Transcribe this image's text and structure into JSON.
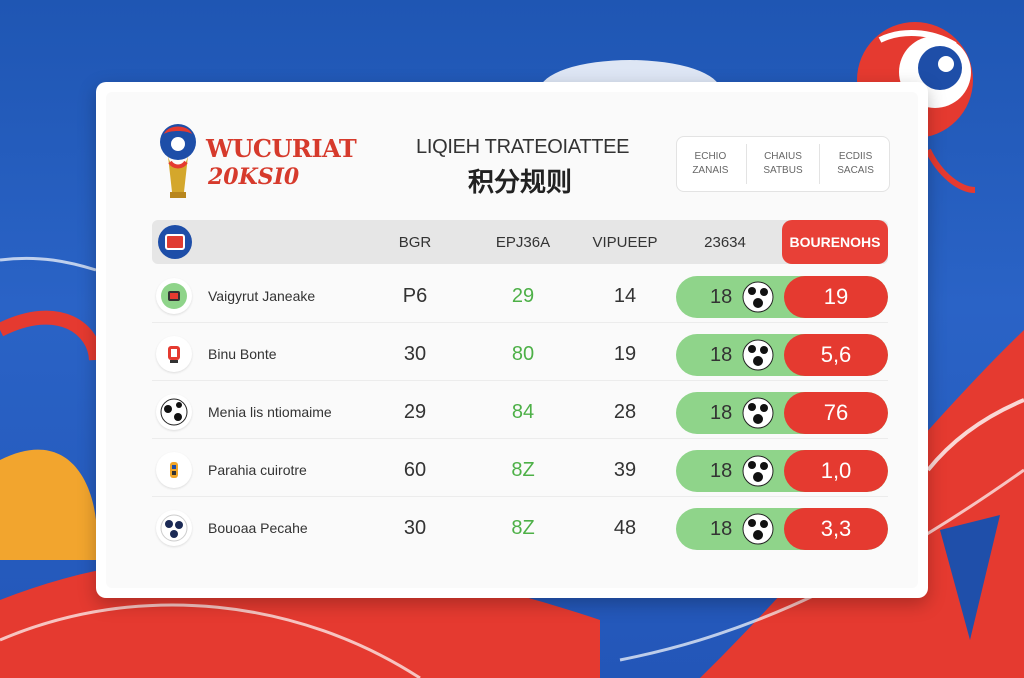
{
  "brand": {
    "title": "WUCURIAT",
    "year": "20KSI0"
  },
  "page": {
    "title_en": "LIQIEH TRATEOIATTEE",
    "title_cn": "积分规则"
  },
  "top_tabs": [
    {
      "line1": "ECHIO",
      "line2": "ZANAIS"
    },
    {
      "line1": "CHAIUS",
      "line2": "SATBUS"
    },
    {
      "line1": "ECDIIS",
      "line2": "SACAIS"
    }
  ],
  "table": {
    "columns": [
      "BGR",
      "EPJ36A",
      "VIPUEEP",
      "23634"
    ],
    "highlight_column": "BOURENOHS",
    "rows": [
      {
        "name": "Vaigyrut Janeake",
        "c1": "P6",
        "c2": "29",
        "c3": "14",
        "pill_value": "18",
        "score": "19",
        "icon": "green-flag-icon"
      },
      {
        "name": "Binu Bonte",
        "c1": "30",
        "c2": "80",
        "c3": "19",
        "pill_value": "18",
        "score": "5,6",
        "icon": "red-cup-icon"
      },
      {
        "name": "Menia lis ntiomaime",
        "c1": "29",
        "c2": "84",
        "c3": "28",
        "pill_value": "18",
        "score": "76",
        "icon": "soccer-ball-icon"
      },
      {
        "name": "Parahia cuirotre",
        "c1": "60",
        "c2": "8Z",
        "c3": "39",
        "pill_value": "18",
        "score": "1,0",
        "icon": "gold-badge-icon"
      },
      {
        "name": "Bouoaa Pecahe",
        "c1": "30",
        "c2": "8Z",
        "c3": "48",
        "pill_value": "18",
        "score": "3,3",
        "icon": "navy-ball-icon"
      }
    ]
  },
  "colors": {
    "background_blue": "#2356b8",
    "accent_red": "#e53a30",
    "accent_green": "#8fd48a",
    "green_text": "#4db047"
  }
}
